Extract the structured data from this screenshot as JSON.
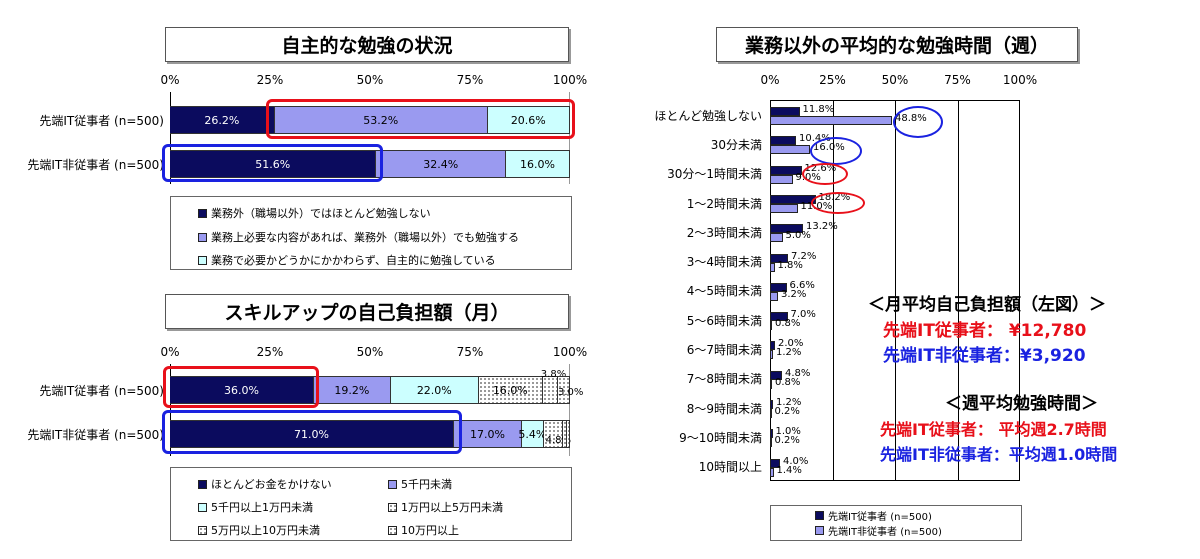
{
  "chart_data": [
    {
      "type": "bar",
      "orientation": "horizontal-stacked",
      "title": "自主的な勉強の状況",
      "x_ticks": [
        "0%",
        "25%",
        "50%",
        "75%",
        "100%"
      ],
      "categories": [
        "先端IT従事者 (n=500)",
        "先端IT非従事者 (n=500)"
      ],
      "series": [
        {
          "name": "業務外（職場以外）ではほとんど勉強しない",
          "color": "#0b0b5e",
          "values": [
            26.2,
            51.6
          ],
          "labels": [
            "26.2%",
            "51.6%"
          ]
        },
        {
          "name": "業務上必要な内容があれば、業務外（職場以外）でも勉強する",
          "color": "#9a9af0",
          "values": [
            53.2,
            32.4
          ],
          "labels": [
            "53.2%",
            "32.4%"
          ]
        },
        {
          "name": "業務で必要かどうかにかかわらず、自主的に勉強している",
          "color": "#ccffff",
          "values": [
            20.6,
            16.0
          ],
          "labels": [
            "20.6%",
            "16.0%"
          ]
        }
      ]
    },
    {
      "type": "bar",
      "orientation": "horizontal-stacked",
      "title": "スキルアップの自己負担額（月）",
      "x_ticks": [
        "0%",
        "25%",
        "50%",
        "75%",
        "100%"
      ],
      "categories": [
        "先端IT従事者 (n=500)",
        "先端IT非従事者 (n=500)"
      ],
      "series": [
        {
          "name": "ほとんどお金をかけない",
          "color": "#0b0b5e",
          "values": [
            36.0,
            71.0
          ],
          "labels": [
            "36.0%",
            "71.0%"
          ]
        },
        {
          "name": "5千円未満",
          "color": "#9a9af0",
          "values": [
            19.2,
            17.0
          ],
          "labels": [
            "19.2%",
            "17.0%"
          ]
        },
        {
          "name": "5千円以上1万円未満",
          "color": "#ccffff",
          "values": [
            22.0,
            5.4
          ],
          "labels": [
            "22.0%",
            "5.4%"
          ]
        },
        {
          "name": "1万円以上5万円未満",
          "color": "#ffffff",
          "values": [
            16.0,
            4.8
          ],
          "labels": [
            "16.0%",
            "4.8%"
          ]
        },
        {
          "name": "5万円以上10万円未満",
          "color": "#ffffff",
          "values": [
            3.8,
            1.0
          ],
          "labels": [
            "3.8%",
            ""
          ]
        },
        {
          "name": "10万円以上",
          "color": "#ffffff",
          "values": [
            3.0,
            0.8
          ],
          "labels": [
            "3.0%",
            ""
          ]
        }
      ]
    },
    {
      "type": "bar",
      "orientation": "horizontal-grouped",
      "title": "業務以外の平均的な勉強時間（週）",
      "x_ticks": [
        "0%",
        "25%",
        "50%",
        "75%",
        "100%"
      ],
      "categories": [
        "ほとんど勉強しない",
        "30分未満",
        "30分～1時間未満",
        "1～2時間未満",
        "2～3時間未満",
        "3～4時間未満",
        "4～5時間未満",
        "5～6時間未満",
        "6～7時間未満",
        "7～8時間未満",
        "8～9時間未満",
        "9～10時間未満",
        "10時間以上"
      ],
      "series": [
        {
          "name": "先端IT従事者 (n=500)",
          "color": "#0b0b5e",
          "values": [
            11.8,
            10.4,
            12.6,
            18.2,
            13.2,
            7.2,
            6.6,
            7.0,
            2.0,
            4.8,
            1.2,
            1.0,
            4.0
          ],
          "labels": [
            "11.8%",
            "10.4%",
            "12.6%",
            "18.2%",
            "13.2%",
            "7.2%",
            "6.6%",
            "7.0%",
            "2.0%",
            "4.8%",
            "1.2%",
            "1.0%",
            "4.0%"
          ]
        },
        {
          "name": "先端IT非従事者 (n=500)",
          "color": "#9a9af0",
          "values": [
            48.8,
            16.0,
            9.0,
            11.0,
            5.0,
            1.8,
            3.2,
            0.8,
            1.2,
            0.8,
            0.2,
            0.2,
            1.4
          ],
          "labels": [
            "48.8%",
            "16.0%",
            "9.0%",
            "11.0%",
            "5.0%",
            "1.8%",
            "3.2%",
            "0.8%",
            "1.2%",
            "0.8%",
            "0.2%",
            "0.2%",
            "1.4%"
          ]
        }
      ]
    }
  ],
  "annotations": {
    "cost_heading": "＜月平均自己負担額（左図）＞",
    "cost_it": "先端IT従事者：  ¥12,780",
    "cost_nonit": "先端IT非従事者：¥3,920",
    "time_heading": "＜週平均勉強時間＞",
    "time_it": "先端IT従事者：   平均週2.7時間",
    "time_nonit": "先端IT非従事者：平均週1.0時間"
  },
  "colors": {
    "dark": "#0b0b5e",
    "light": "#9a9af0",
    "cyan": "#ccffff",
    "red": "#e8101a",
    "blue": "#1a22e0"
  }
}
